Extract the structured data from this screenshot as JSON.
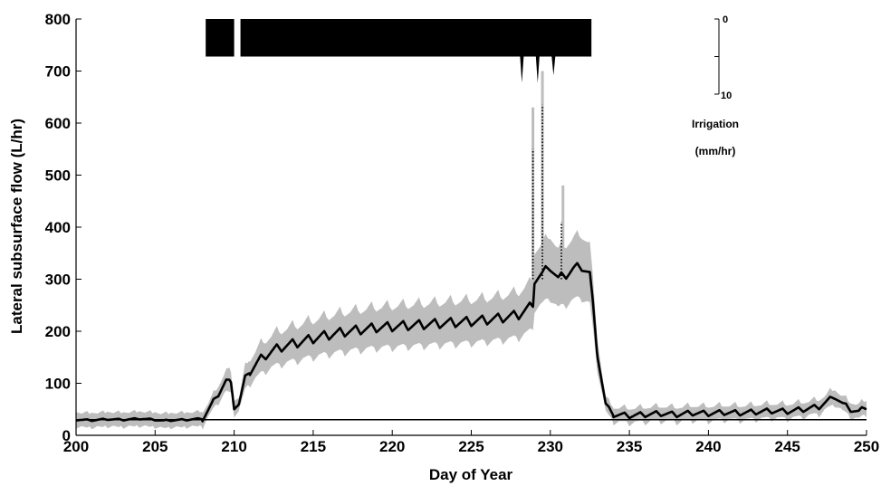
{
  "chart_data": {
    "type": "line",
    "xlabel": "Day of Year",
    "ylabel": "Lateral subsurface flow (L/hr)",
    "xlim": [
      200,
      250
    ],
    "ylim": [
      0,
      800
    ],
    "xticks": [
      "200",
      "205",
      "210",
      "215",
      "220",
      "225",
      "230",
      "235",
      "240",
      "245",
      "250"
    ],
    "yticks": [
      "0",
      "100",
      "200",
      "300",
      "400",
      "500",
      "600",
      "700",
      "800"
    ],
    "grid": false,
    "uncertainty_band_color": "#bdbdbd",
    "line_color": "#000000",
    "baseline": {
      "y": 30
    },
    "series": [
      {
        "values": [
          [
            200,
            30
          ],
          [
            201,
            29
          ],
          [
            202,
            31
          ],
          [
            203,
            30
          ],
          [
            204,
            32
          ],
          [
            205,
            30
          ],
          [
            205.5,
            28
          ],
          [
            206,
            29
          ],
          [
            207,
            30
          ],
          [
            208,
            32
          ],
          [
            208.5,
            55
          ],
          [
            209,
            80
          ],
          [
            209.5,
            105
          ],
          [
            209.8,
            100
          ],
          [
            210,
            55
          ],
          [
            210.3,
            60
          ],
          [
            210.7,
            110
          ],
          [
            211,
            125
          ],
          [
            211.5,
            140
          ],
          [
            212,
            155
          ],
          [
            212.5,
            163
          ],
          [
            213,
            170
          ],
          [
            213.5,
            174
          ],
          [
            214,
            178
          ],
          [
            214.5,
            182
          ],
          [
            215,
            186
          ],
          [
            215.5,
            190
          ],
          [
            216,
            193
          ],
          [
            216.5,
            196
          ],
          [
            217,
            199
          ],
          [
            217.5,
            201
          ],
          [
            218,
            203
          ],
          [
            218.5,
            205
          ],
          [
            219,
            207
          ],
          [
            220,
            209
          ],
          [
            221,
            211
          ],
          [
            222,
            213
          ],
          [
            223,
            215
          ],
          [
            224,
            217
          ],
          [
            225,
            219
          ],
          [
            226,
            222
          ],
          [
            227,
            226
          ],
          [
            228,
            232
          ],
          [
            228.9,
            250
          ],
          [
            229,
            300
          ],
          [
            229.5,
            310
          ],
          [
            230,
            325
          ],
          [
            230.5,
            300
          ],
          [
            231,
            310
          ],
          [
            231.5,
            320
          ],
          [
            232,
            325
          ],
          [
            232.5,
            310
          ],
          [
            233,
            150
          ],
          [
            233.5,
            60
          ],
          [
            234,
            40
          ],
          [
            235,
            38
          ],
          [
            236,
            40
          ],
          [
            237,
            42
          ],
          [
            238,
            40
          ],
          [
            239,
            43
          ],
          [
            240,
            42
          ],
          [
            241,
            44
          ],
          [
            242,
            43
          ],
          [
            243,
            45
          ],
          [
            244,
            47
          ],
          [
            245,
            46
          ],
          [
            246,
            50
          ],
          [
            247,
            55
          ],
          [
            248,
            75
          ],
          [
            248.5,
            60
          ],
          [
            249,
            50
          ],
          [
            249.5,
            45
          ],
          [
            250,
            55
          ]
        ]
      }
    ],
    "irrigation": {
      "label_line1": "Irrigation",
      "label_line2": "(mm/hr)",
      "axis_ticks": [
        "0",
        "10"
      ],
      "range_mm_hr": [
        0,
        10
      ],
      "events": [
        {
          "start_day": 208.2,
          "end_day": 210.0,
          "rate_mm_hr": 5
        },
        {
          "start_day": 210.4,
          "end_day": 232.6,
          "rate_mm_hr": 5
        }
      ],
      "spikes": [
        {
          "day": 228.2,
          "rate_mm_hr": 8.5
        },
        {
          "day": 229.2,
          "rate_mm_hr": 8.5
        },
        {
          "day": 230.2,
          "rate_mm_hr": 7.5
        }
      ]
    }
  }
}
